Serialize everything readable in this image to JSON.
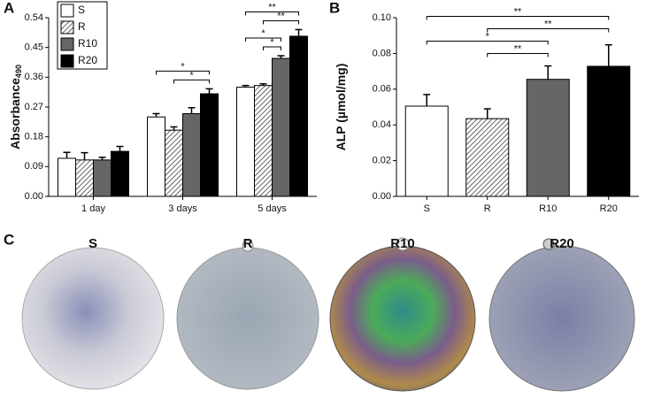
{
  "chart_data": [
    {
      "type": "grouped_bar",
      "panel_label": "A",
      "ylabel": "Absorbance",
      "ylabel_sub": "490",
      "categories": [
        "1 day",
        "3 days",
        "5 days"
      ],
      "series": [
        {
          "name": "S",
          "color": "#ffffff",
          "hatched": false,
          "values": [
            0.115,
            0.24,
            0.33
          ],
          "errors": [
            0.018,
            0.01,
            0.005
          ]
        },
        {
          "name": "R",
          "color": "#ffffff",
          "hatched": true,
          "values": [
            0.11,
            0.2,
            0.335
          ],
          "errors": [
            0.022,
            0.01,
            0.005
          ]
        },
        {
          "name": "R10",
          "color": "#666666",
          "hatched": false,
          "values": [
            0.11,
            0.25,
            0.417
          ],
          "errors": [
            0.008,
            0.018,
            0.008
          ]
        },
        {
          "name": "R20",
          "color": "#000000",
          "hatched": false,
          "values": [
            0.136,
            0.31,
            0.484
          ],
          "errors": [
            0.015,
            0.015,
            0.02
          ]
        }
      ],
      "ylim": [
        0,
        0.54
      ],
      "yticks": [
        {
          "value": 0,
          "label": "0.00"
        },
        {
          "value": 0.09,
          "label": "0.09"
        },
        {
          "value": 0.18,
          "label": "0.18"
        },
        {
          "value": 0.27,
          "label": "0.27"
        },
        {
          "value": 0.36,
          "label": "0.36"
        },
        {
          "value": 0.45,
          "label": "0.45"
        },
        {
          "value": 0.54,
          "label": "0.54"
        }
      ],
      "significance": [
        {
          "group": "3 days",
          "from": "R",
          "to": "R20",
          "label": "*"
        },
        {
          "group": "3 days",
          "from": "S",
          "to": "R20",
          "label": "*"
        },
        {
          "group": "5 days",
          "from": "R",
          "to": "R10",
          "label": "*"
        },
        {
          "group": "5 days",
          "from": "S",
          "to": "R10",
          "label": "*"
        },
        {
          "group": "5 days",
          "from": "R",
          "to": "R20",
          "label": "**"
        },
        {
          "group": "5 days",
          "from": "S",
          "to": "R20",
          "label": "**"
        }
      ]
    },
    {
      "type": "bar",
      "panel_label": "B",
      "ylabel": "ALP (µmol/mg)",
      "categories": [
        "S",
        "R",
        "R10",
        "R20"
      ],
      "values": [
        0.0505,
        0.0435,
        0.0655,
        0.0728
      ],
      "errors": [
        0.0065,
        0.0055,
        0.0075,
        0.012
      ],
      "colors": [
        "#ffffff",
        "#ffffff",
        "#666666",
        "#000000"
      ],
      "hatched": [
        false,
        true,
        false,
        false
      ],
      "ylim": [
        0,
        0.1
      ],
      "yticks": [
        {
          "value": 0,
          "label": "0.00"
        },
        {
          "value": 0.02,
          "label": "0.02"
        },
        {
          "value": 0.04,
          "label": "0.04"
        },
        {
          "value": 0.06,
          "label": "0.06"
        },
        {
          "value": 0.08,
          "label": "0.08"
        },
        {
          "value": 0.1,
          "label": "0.10"
        }
      ],
      "significance": [
        {
          "from": "R",
          "to": "R10",
          "label": "**"
        },
        {
          "from": "S",
          "to": "R10",
          "label": "*"
        },
        {
          "from": "R",
          "to": "R20",
          "label": "**"
        },
        {
          "from": "S",
          "to": "R20",
          "label": "**"
        }
      ]
    }
  ],
  "panel_c": {
    "panel_label": "C",
    "labels": [
      "S",
      "R",
      "R10",
      "R20"
    ]
  }
}
